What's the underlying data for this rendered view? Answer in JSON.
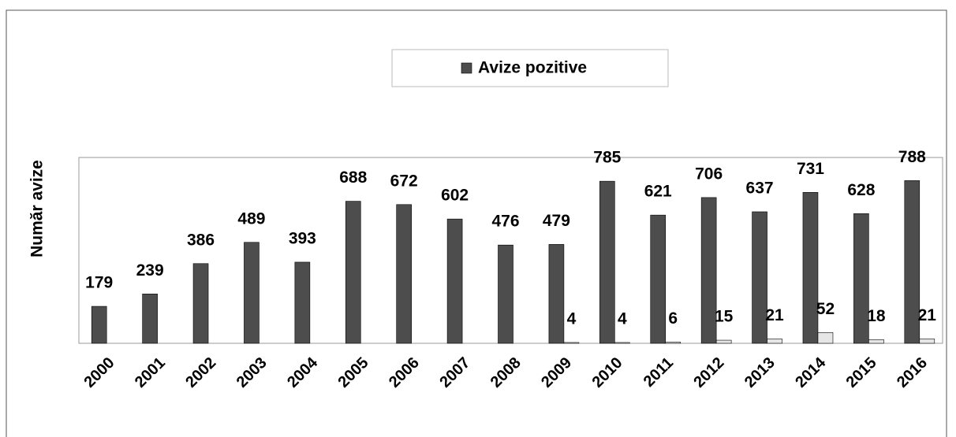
{
  "chart_data": {
    "type": "bar",
    "y_label": "Număr avize",
    "categories": [
      "2000",
      "2001",
      "2002",
      "2003",
      "2004",
      "2005",
      "2006",
      "2007",
      "2008",
      "2009",
      "2010",
      "2011",
      "2012",
      "2013",
      "2014",
      "2015",
      "2016"
    ],
    "series": [
      {
        "name": "Avize pozitive",
        "color": "#4d4d4d",
        "values": [
          179,
          239,
          386,
          489,
          393,
          688,
          672,
          602,
          476,
          479,
          785,
          621,
          706,
          637,
          731,
          628,
          788
        ]
      },
      {
        "color": "#e6e6e6",
        "values": [
          null,
          null,
          null,
          null,
          null,
          null,
          null,
          null,
          null,
          4,
          4,
          6,
          15,
          21,
          52,
          18,
          21
        ]
      }
    ],
    "ylim": [
      0,
      900
    ],
    "legend": "top"
  }
}
